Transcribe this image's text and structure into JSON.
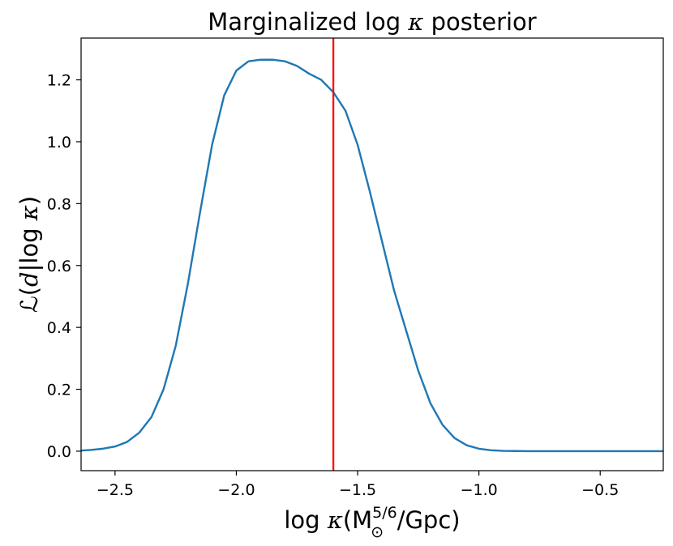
{
  "chart_data": {
    "type": "line",
    "title": "Marginalized log κ posterior",
    "title_parts": {
      "pre": "Marginalized log",
      "sym": "κ",
      "post": " posterior"
    },
    "xlabel": "log κ(M⊙^5/6/Gpc)",
    "xlabel_parts": {
      "log": "log",
      "sym": "κ",
      "open": "(M",
      "sub": "⊙",
      "sup": "5/6",
      "rest": "/Gpc)"
    },
    "ylabel": "ℒ(d|log κ)",
    "ylabel_parts": {
      "L": "ℒ",
      "open": "(",
      "d": "d",
      "bar": "|log",
      "sym": "κ",
      "close": ")"
    },
    "xlim": [
      -2.64,
      -0.24
    ],
    "ylim": [
      -0.063,
      1.335
    ],
    "xticks": [
      -2.5,
      -2.0,
      -1.5,
      -1.0,
      -0.5
    ],
    "xtick_labels": [
      "−2.5",
      "−2.0",
      "−1.5",
      "−1.0",
      "−0.5"
    ],
    "yticks": [
      0.0,
      0.2,
      0.4,
      0.6,
      0.8,
      1.0,
      1.2
    ],
    "ytick_labels": [
      "0.0",
      "0.2",
      "0.4",
      "0.6",
      "0.8",
      "1.0",
      "1.2"
    ],
    "grid": false,
    "series": [
      {
        "color": "#1f77b4",
        "x": [
          -2.64,
          -2.6,
          -2.55,
          -2.5,
          -2.45,
          -2.4,
          -2.35,
          -2.3,
          -2.25,
          -2.2,
          -2.15,
          -2.1,
          -2.05,
          -2.0,
          -1.95,
          -1.9,
          -1.85,
          -1.8,
          -1.75,
          -1.7,
          -1.65,
          -1.6,
          -1.55,
          -1.5,
          -1.45,
          -1.4,
          -1.35,
          -1.3,
          -1.25,
          -1.2,
          -1.15,
          -1.1,
          -1.05,
          -1.0,
          -0.95,
          -0.9,
          -0.85,
          -0.8,
          -0.7,
          -0.5,
          -0.24
        ],
        "y": [
          0.002,
          0.004,
          0.008,
          0.015,
          0.03,
          0.06,
          0.11,
          0.2,
          0.34,
          0.54,
          0.77,
          0.99,
          1.15,
          1.23,
          1.26,
          1.265,
          1.265,
          1.26,
          1.245,
          1.22,
          1.2,
          1.16,
          1.1,
          0.99,
          0.84,
          0.68,
          0.52,
          0.39,
          0.26,
          0.155,
          0.085,
          0.042,
          0.019,
          0.008,
          0.003,
          0.001,
          0.0005,
          0.0,
          0.0,
          0.0,
          0.0
        ]
      }
    ],
    "vline": {
      "x": -1.6,
      "color": "#ff0000"
    }
  }
}
